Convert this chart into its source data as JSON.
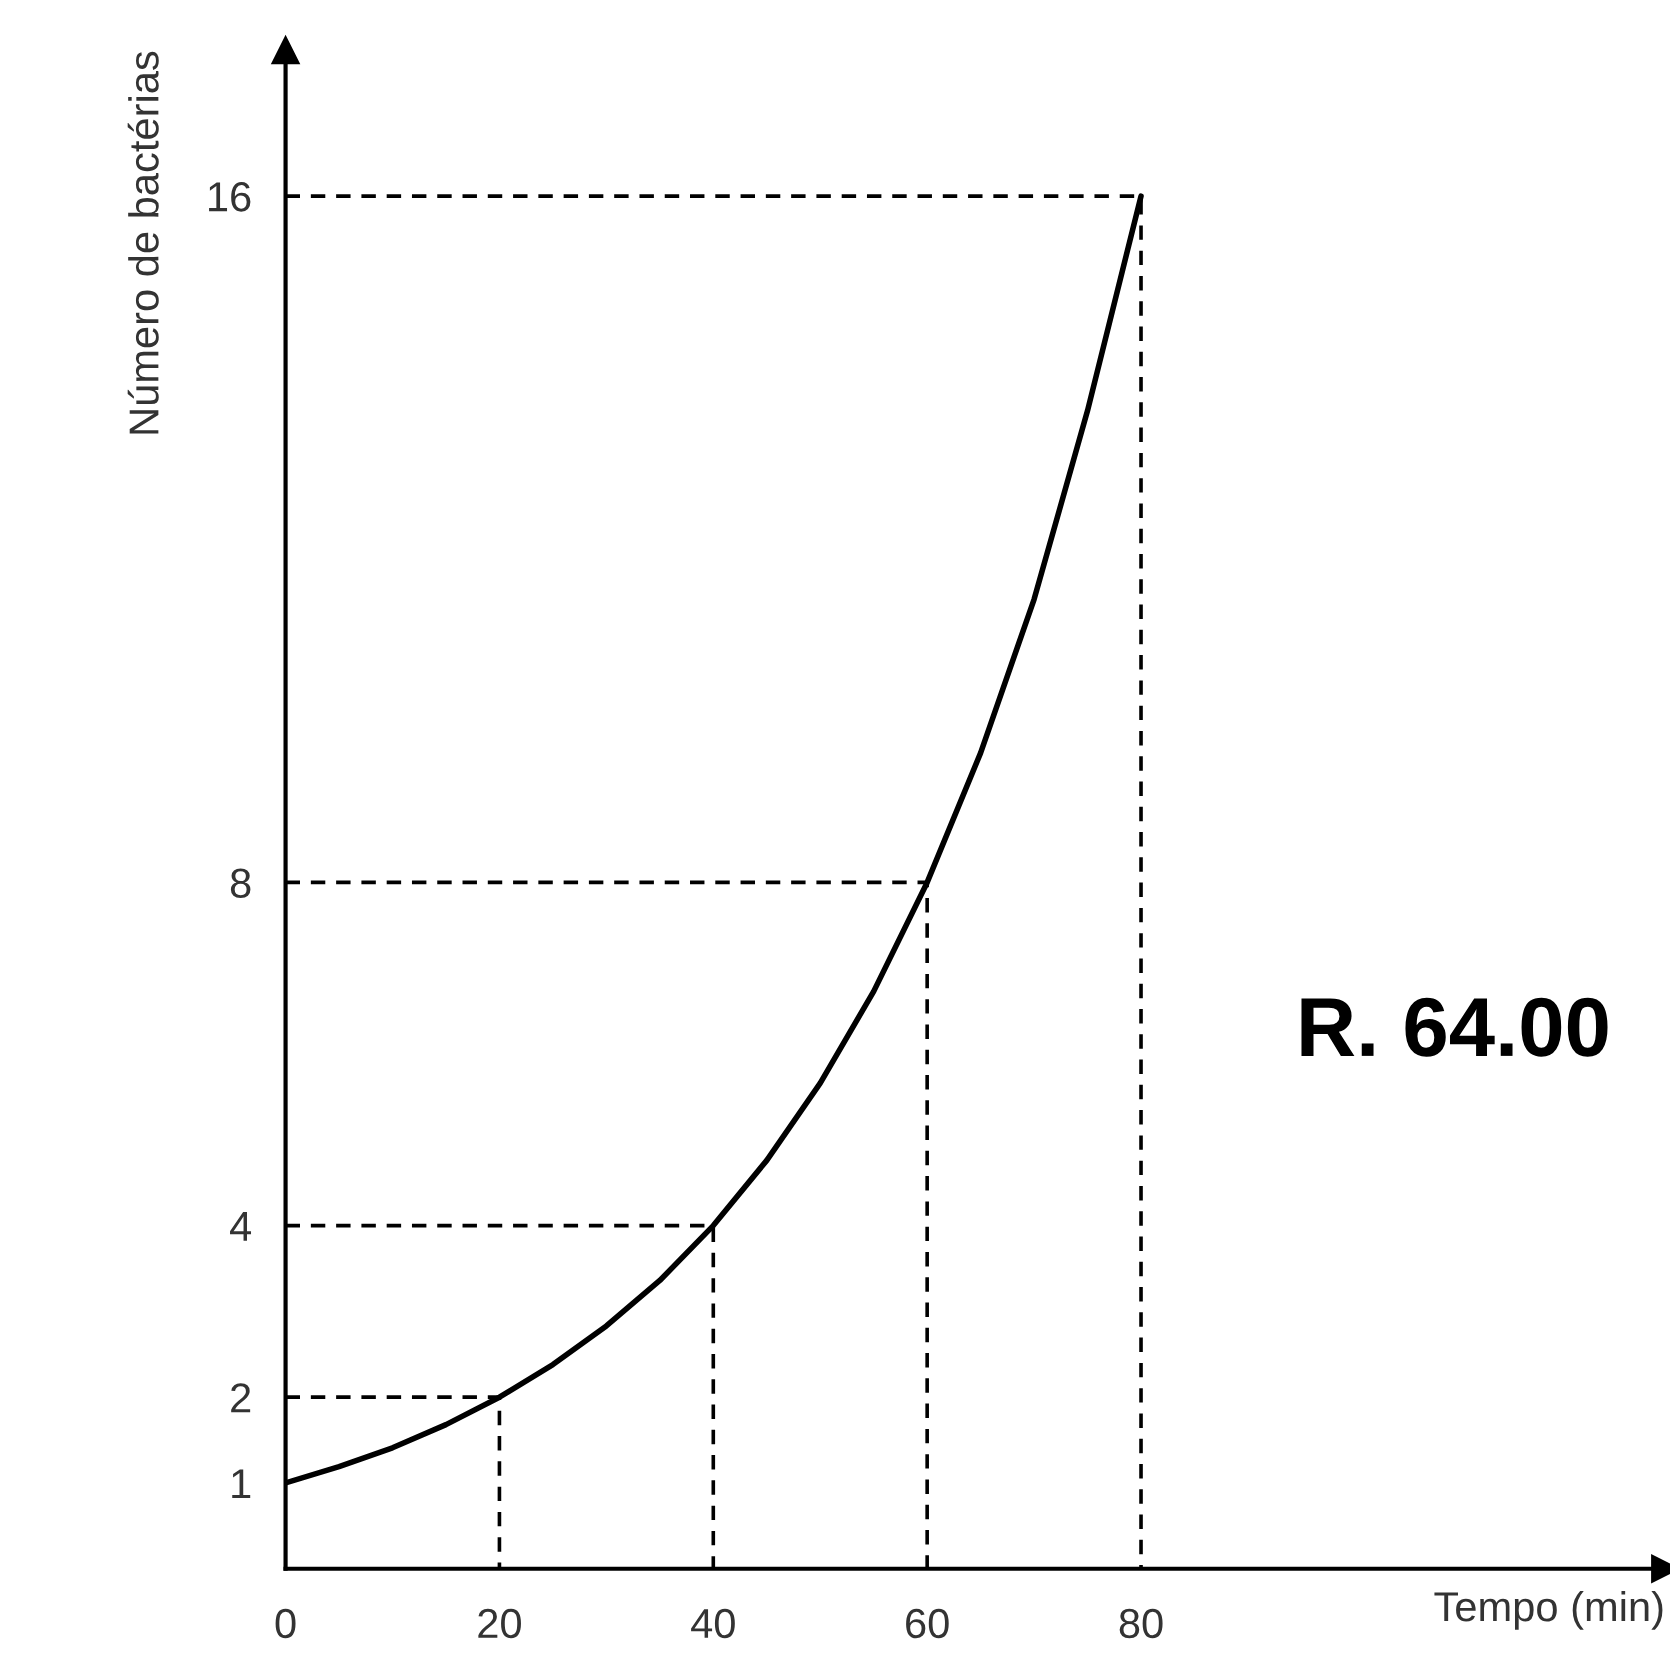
{
  "chart_data": {
    "type": "line",
    "xlabel": "Tempo (min)",
    "ylabel": "Número de bactérias",
    "x": [
      0,
      5,
      10,
      15,
      20,
      25,
      30,
      35,
      40,
      45,
      50,
      55,
      60,
      65,
      70,
      75,
      80
    ],
    "series": [
      {
        "color": "#000000",
        "line_style": "solid",
        "values": [
          1,
          1.19,
          1.41,
          1.68,
          2,
          2.38,
          2.83,
          3.36,
          4,
          4.76,
          5.66,
          6.73,
          8,
          9.51,
          11.3,
          13.5,
          16
        ]
      },
      {
        "color": "#000000",
        "line_style": "dashed",
        "x": [
          0,
          20,
          20
        ],
        "values": [
          2,
          2,
          0
        ]
      },
      {
        "color": "#000000",
        "line_style": "dashed",
        "x": [
          0,
          40,
          40
        ],
        "values": [
          4,
          4,
          0
        ]
      },
      {
        "color": "#000000",
        "line_style": "dashed",
        "x": [
          0,
          60,
          60
        ],
        "values": [
          8,
          8,
          0
        ]
      },
      {
        "color": "#000000",
        "line_style": "dashed",
        "x": [
          0,
          80,
          80
        ],
        "values": [
          16,
          16,
          0
        ]
      }
    ],
    "xlim": [
      0,
      129
    ],
    "ylim": [
      0,
      17.7
    ],
    "xticks": [
      0,
      20,
      40,
      60,
      80
    ],
    "yticks": [
      1,
      2,
      4,
      8,
      16
    ],
    "grid": false,
    "legend": false,
    "annotations": [
      "R. 64.00"
    ]
  }
}
